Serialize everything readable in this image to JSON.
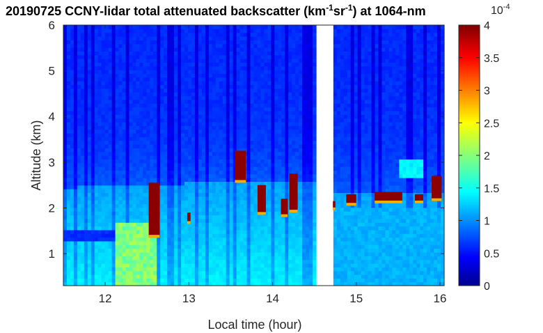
{
  "title": {
    "pre": "20190725 CCNY-lidar total attenuated backscatter (km",
    "sup1": "-1",
    "mid": "sr",
    "sup2": "-1",
    "post": ") at 1064-nm"
  },
  "colorbar": {
    "exponent": "10",
    "exponent_power": "-4",
    "ticks": [
      "0",
      "0.5",
      "1",
      "1.5",
      "2",
      "2.5",
      "3",
      "3.5",
      "4"
    ],
    "range": [
      0,
      4
    ],
    "colormap": "jet"
  },
  "chart_data": {
    "type": "heatmap",
    "title": "20190725 CCNY-lidar total attenuated backscatter (km-1sr-1) at 1064-nm",
    "xlabel": "Local time (hour)",
    "ylabel": "Altitude (km)",
    "xlim": [
      11.5,
      16.05
    ],
    "ylim": [
      0.3,
      6
    ],
    "xticks": [
      "12",
      "13",
      "14",
      "15",
      "16"
    ],
    "yticks": [
      "1",
      "2",
      "3",
      "4",
      "5",
      "6"
    ],
    "x_tick_values": [
      12,
      13,
      14,
      15,
      16
    ],
    "y_tick_values": [
      1,
      2,
      3,
      4,
      5,
      6
    ],
    "data_gap": [
      14.53,
      14.72
    ],
    "boundary_layer_top_km": [
      {
        "t": 11.5,
        "h": 2.45
      },
      {
        "t": 12.5,
        "h": 2.5
      },
      {
        "t": 13.6,
        "h": 2.6
      },
      {
        "t": 14.5,
        "h": 2.55
      },
      {
        "t": 14.75,
        "h": 2.35
      },
      {
        "t": 16.0,
        "h": 2.35
      }
    ],
    "high_backscatter_cloud_features": [
      {
        "t0": 12.52,
        "t1": 12.65,
        "h0": 1.35,
        "h1": 2.55
      },
      {
        "t0": 12.98,
        "t1": 13.02,
        "h0": 1.65,
        "h1": 1.9
      },
      {
        "t0": 13.55,
        "t1": 13.68,
        "h0": 2.55,
        "h1": 3.25
      },
      {
        "t0": 13.82,
        "t1": 13.92,
        "h0": 1.85,
        "h1": 2.5
      },
      {
        "t0": 14.1,
        "t1": 14.18,
        "h0": 1.8,
        "h1": 2.2
      },
      {
        "t0": 14.2,
        "t1": 14.3,
        "h0": 1.9,
        "h1": 2.75
      },
      {
        "t0": 14.72,
        "t1": 14.75,
        "h0": 1.95,
        "h1": 2.15
      },
      {
        "t0": 14.88,
        "t1": 15.0,
        "h0": 2.05,
        "h1": 2.3
      },
      {
        "t0": 15.22,
        "t1": 15.55,
        "h0": 2.1,
        "h1": 2.35
      },
      {
        "t0": 15.7,
        "t1": 15.8,
        "h0": 2.1,
        "h1": 2.3
      },
      {
        "t0": 15.9,
        "t1": 16.02,
        "h0": 2.15,
        "h1": 2.7
      }
    ],
    "colorbar_range": [
      0,
      4
    ],
    "colorbar_scale": "1e-4"
  }
}
